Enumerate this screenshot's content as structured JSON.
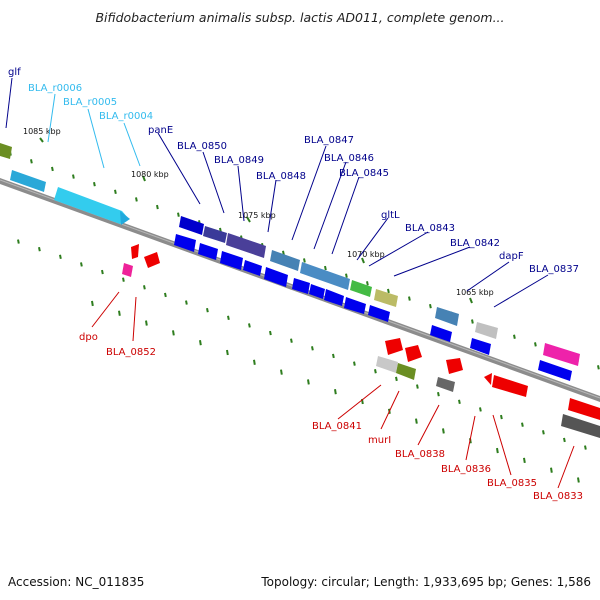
{
  "title": "Bifidobacterium animalis subsp. lactis AD011, complete genom...",
  "footer": {
    "accession": "Accession: NC_011835",
    "summary": "Topology: circular; Length: 1,933,695 bp; Genes: 1,586"
  },
  "ticks": [
    "1085 kbp",
    "1080 kbp",
    "1075 kbp",
    "1070 kbp",
    "1065 kbp"
  ],
  "colors": {
    "forward_label": "#00008b",
    "rna_label": "#33bbee",
    "reverse_label": "#cc0000",
    "backbone": "#7a7a7a",
    "gc_marks": "#2e7d1e"
  },
  "labels_top": [
    {
      "text": "glf",
      "color": "#00008b"
    },
    {
      "text": "BLA_r0006",
      "color": "#33bbee"
    },
    {
      "text": "BLA_r0005",
      "color": "#33bbee"
    },
    {
      "text": "BLA_r0004",
      "color": "#33bbee"
    },
    {
      "text": "panE",
      "color": "#00008b"
    },
    {
      "text": "BLA_0850",
      "color": "#00008b"
    },
    {
      "text": "BLA_0849",
      "color": "#00008b"
    },
    {
      "text": "BLA_0848",
      "color": "#00008b"
    },
    {
      "text": "BLA_0847",
      "color": "#00008b"
    },
    {
      "text": "BLA_0846",
      "color": "#00008b"
    },
    {
      "text": "BLA_0845",
      "color": "#00008b"
    },
    {
      "text": "gltL",
      "color": "#00008b"
    },
    {
      "text": "BLA_0843",
      "color": "#00008b"
    },
    {
      "text": "BLA_0842",
      "color": "#00008b"
    },
    {
      "text": "dapF",
      "color": "#00008b"
    },
    {
      "text": "BLA_0837",
      "color": "#00008b"
    }
  ],
  "labels_bottom": [
    {
      "text": "dpo",
      "color": "#cc0000"
    },
    {
      "text": "BLA_0852",
      "color": "#cc0000"
    },
    {
      "text": "BLA_0841",
      "color": "#cc0000"
    },
    {
      "text": "murI",
      "color": "#cc0000"
    },
    {
      "text": "BLA_0838",
      "color": "#cc0000"
    },
    {
      "text": "BLA_0836",
      "color": "#cc0000"
    },
    {
      "text": "BLA_0835",
      "color": "#cc0000"
    },
    {
      "text": "BLA_0833",
      "color": "#cc0000"
    }
  ]
}
